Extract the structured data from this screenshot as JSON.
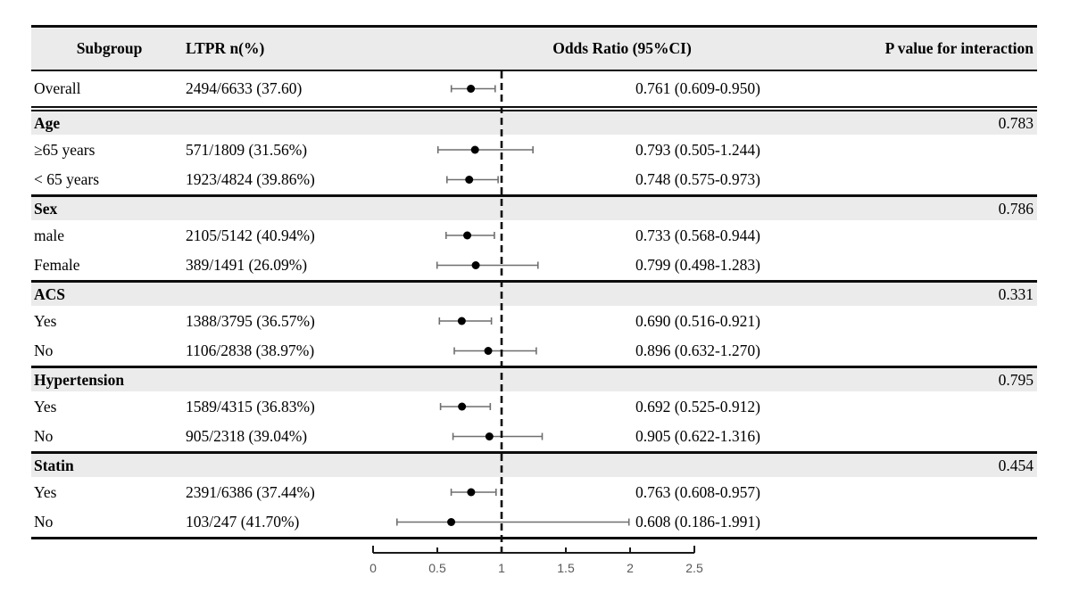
{
  "table": {
    "columns": {
      "subgroup": "Subgroup",
      "ltpr": "LTPR n(%)",
      "odds_ratio": "Odds Ratio (95%CI)",
      "p_interaction": "P value for interaction"
    }
  },
  "chart_data": {
    "type": "forest",
    "x_axis": {
      "ticks": [
        "0",
        "0.5",
        "1",
        "1.5",
        "2",
        "2.5"
      ],
      "tick_values": [
        0,
        0.5,
        1,
        1.5,
        2,
        2.5
      ],
      "range": [
        0,
        2.5
      ],
      "reference_line": 1
    },
    "rows": [
      {
        "kind": "data",
        "subgroup": "Overall",
        "ltpr": "2494/6633 (37.60)",
        "or": 0.761,
        "ci_low": 0.609,
        "ci_high": 0.95,
        "or_label": "0.761 (0.609-0.950)"
      },
      {
        "kind": "section",
        "subgroup": "Age",
        "p": "0.783"
      },
      {
        "kind": "data",
        "subgroup": "≥65 years",
        "ltpr": "571/1809 (31.56%)",
        "or": 0.793,
        "ci_low": 0.505,
        "ci_high": 1.244,
        "or_label": "0.793 (0.505-1.244)"
      },
      {
        "kind": "data",
        "subgroup": "< 65 years",
        "ltpr": "1923/4824 (39.86%)",
        "or": 0.748,
        "ci_low": 0.575,
        "ci_high": 0.973,
        "or_label": "0.748 (0.575-0.973)"
      },
      {
        "kind": "section",
        "subgroup": "Sex",
        "p": "0.786"
      },
      {
        "kind": "data",
        "subgroup": "male",
        "ltpr": "2105/5142 (40.94%)",
        "or": 0.733,
        "ci_low": 0.568,
        "ci_high": 0.944,
        "or_label": "0.733 (0.568-0.944)"
      },
      {
        "kind": "data",
        "subgroup": "Female",
        "ltpr": "389/1491 (26.09%)",
        "or": 0.799,
        "ci_low": 0.498,
        "ci_high": 1.283,
        "or_label": "0.799 (0.498-1.283)"
      },
      {
        "kind": "section",
        "subgroup": "ACS",
        "p": "0.331"
      },
      {
        "kind": "data",
        "subgroup": "Yes",
        "ltpr": "1388/3795 (36.57%)",
        "or": 0.69,
        "ci_low": 0.516,
        "ci_high": 0.921,
        "or_label": "0.690 (0.516-0.921)"
      },
      {
        "kind": "data",
        "subgroup": "No",
        "ltpr": "1106/2838 (38.97%)",
        "or": 0.896,
        "ci_low": 0.632,
        "ci_high": 1.27,
        "or_label": "0.896 (0.632-1.270)"
      },
      {
        "kind": "section",
        "subgroup": "Hypertension",
        "p": "0.795"
      },
      {
        "kind": "data",
        "subgroup": "Yes",
        "ltpr": "1589/4315 (36.83%)",
        "or": 0.692,
        "ci_low": 0.525,
        "ci_high": 0.912,
        "or_label": "0.692 (0.525-0.912)"
      },
      {
        "kind": "data",
        "subgroup": "No",
        "ltpr": "905/2318 (39.04%)",
        "or": 0.905,
        "ci_low": 0.622,
        "ci_high": 1.316,
        "or_label": "0.905 (0.622-1.316)"
      },
      {
        "kind": "section",
        "subgroup": "Statin",
        "p": "0.454"
      },
      {
        "kind": "data",
        "subgroup": "Yes",
        "ltpr": "2391/6386 (37.44%)",
        "or": 0.763,
        "ci_low": 0.608,
        "ci_high": 0.957,
        "or_label": "0.763 (0.608-0.957)"
      },
      {
        "kind": "data",
        "subgroup": "No",
        "ltpr": "103/247 (41.70%)",
        "or": 0.608,
        "ci_low": 0.186,
        "ci_high": 1.991,
        "or_label": "0.608 (0.186-1.991)"
      }
    ]
  },
  "colors": {
    "band": "#ebebeb",
    "border": "#0d0d0d",
    "ci_line": "#6f6f6f",
    "point": "#000000",
    "axis_line": "#1a1a1a",
    "axis_label": "#595959"
  }
}
